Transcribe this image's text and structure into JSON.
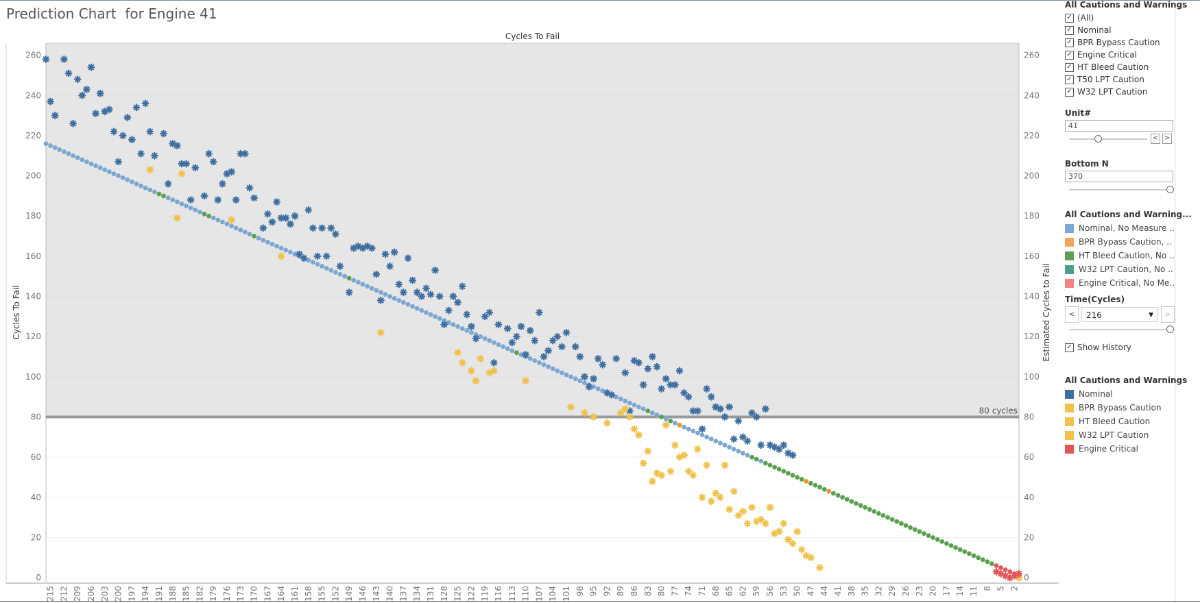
{
  "title": "Prediction Chart  for Engine 41",
  "chart_data": {
    "type": "scatter",
    "title": "Cycles To Fail",
    "ylabel_left": "Cycles To Fail",
    "ylabel_right": "Estimated Cycles to Fail",
    "x_ticks": [
      215,
      212,
      209,
      206,
      203,
      200,
      197,
      194,
      191,
      188,
      185,
      182,
      179,
      176,
      173,
      170,
      167,
      164,
      161,
      158,
      155,
      152,
      149,
      146,
      143,
      140,
      137,
      134,
      131,
      128,
      125,
      122,
      119,
      116,
      113,
      110,
      107,
      104,
      101,
      98,
      95,
      92,
      89,
      86,
      83,
      80,
      77,
      74,
      71,
      68,
      65,
      62,
      59,
      56,
      53,
      50,
      47,
      44,
      41,
      38,
      35,
      32,
      29,
      26,
      23,
      20,
      17,
      14,
      11,
      8,
      5,
      2
    ],
    "y_ticks": [
      0,
      20,
      40,
      60,
      80,
      100,
      120,
      140,
      160,
      180,
      200,
      220,
      240,
      260
    ],
    "xlim": [
      216,
      1
    ],
    "ylim": [
      -2,
      266
    ],
    "threshold": {
      "value": 80,
      "label": "80 cycles"
    },
    "series": [
      {
        "name": "Nominal, No Measure ..",
        "color": "#7ba7d1",
        "shape": "circle",
        "x_range": [
          216,
          1
        ],
        "y_at_start": 216,
        "y_at_end": 1
      },
      {
        "name": "Nominal",
        "color": "#3f6f9f",
        "shape": "asterisk",
        "points": [
          [
            216,
            258
          ],
          [
            215,
            237
          ],
          [
            214,
            230
          ],
          [
            212,
            258
          ],
          [
            211,
            251
          ],
          [
            210,
            226
          ],
          [
            209,
            248
          ],
          [
            208,
            240
          ],
          [
            207,
            243
          ],
          [
            206,
            254
          ],
          [
            205,
            231
          ],
          [
            204,
            241
          ],
          [
            203,
            232
          ],
          [
            202,
            233
          ],
          [
            201,
            222
          ],
          [
            200,
            207
          ],
          [
            199,
            220
          ],
          [
            198,
            229
          ],
          [
            197,
            218
          ],
          [
            196,
            234
          ],
          [
            195,
            211
          ],
          [
            194,
            236
          ],
          [
            193,
            222
          ],
          [
            192,
            210
          ],
          [
            190,
            221
          ],
          [
            189,
            196
          ],
          [
            188,
            216
          ],
          [
            187,
            215
          ],
          [
            186,
            206
          ],
          [
            185,
            206
          ],
          [
            184,
            188
          ],
          [
            183,
            204
          ],
          [
            181,
            190
          ],
          [
            180,
            211
          ],
          [
            179,
            207
          ],
          [
            178,
            188
          ],
          [
            177,
            196
          ],
          [
            176,
            201
          ],
          [
            175,
            202
          ],
          [
            174,
            188
          ],
          [
            173,
            211
          ],
          [
            172,
            211
          ],
          [
            171,
            194
          ],
          [
            170,
            189
          ],
          [
            168,
            174
          ],
          [
            167,
            181
          ],
          [
            166,
            177
          ],
          [
            165,
            187
          ],
          [
            164,
            179
          ],
          [
            163,
            179
          ],
          [
            162,
            176
          ],
          [
            161,
            180
          ],
          [
            160,
            161
          ],
          [
            159,
            159
          ],
          [
            158,
            183
          ],
          [
            157,
            174
          ],
          [
            156,
            160
          ],
          [
            155,
            174
          ],
          [
            154,
            160
          ],
          [
            153,
            174
          ],
          [
            152,
            171
          ],
          [
            151,
            155
          ],
          [
            149,
            142
          ],
          [
            148,
            164
          ],
          [
            147,
            165
          ],
          [
            146,
            164
          ],
          [
            145,
            165
          ],
          [
            144,
            164
          ],
          [
            143,
            151
          ],
          [
            142,
            138
          ],
          [
            141,
            161
          ],
          [
            140,
            155
          ],
          [
            139,
            162
          ],
          [
            138,
            146
          ],
          [
            137,
            142
          ],
          [
            136,
            159
          ],
          [
            135,
            148
          ],
          [
            134,
            142
          ],
          [
            133,
            140
          ],
          [
            132,
            144
          ],
          [
            131,
            141
          ],
          [
            130,
            153
          ],
          [
            129,
            140
          ],
          [
            128,
            126
          ],
          [
            127,
            133
          ],
          [
            126,
            140
          ],
          [
            125,
            137
          ],
          [
            124,
            145
          ],
          [
            123,
            131
          ],
          [
            122,
            125
          ],
          [
            121,
            119
          ],
          [
            119,
            130
          ],
          [
            118,
            132
          ],
          [
            117,
            107
          ],
          [
            116,
            126
          ],
          [
            114,
            124
          ],
          [
            113,
            117
          ],
          [
            112,
            120
          ],
          [
            111,
            125
          ],
          [
            110,
            111
          ],
          [
            109,
            123
          ],
          [
            108,
            118
          ],
          [
            107,
            132
          ],
          [
            106,
            110
          ],
          [
            105,
            113
          ],
          [
            104,
            118
          ],
          [
            103,
            120
          ],
          [
            102,
            115
          ],
          [
            101,
            122
          ],
          [
            99,
            115
          ],
          [
            98,
            110
          ],
          [
            97,
            100
          ],
          [
            96,
            95
          ],
          [
            95,
            99
          ],
          [
            94,
            109
          ],
          [
            93,
            106
          ],
          [
            92,
            92
          ],
          [
            91,
            91
          ],
          [
            90,
            109
          ],
          [
            88,
            102
          ],
          [
            87,
            83
          ],
          [
            86,
            108
          ],
          [
            85,
            107
          ],
          [
            84,
            96
          ],
          [
            83,
            104
          ],
          [
            82,
            110
          ],
          [
            81,
            105
          ],
          [
            80,
            94
          ],
          [
            79,
            99
          ],
          [
            78,
            96
          ],
          [
            77,
            96
          ],
          [
            76,
            103
          ],
          [
            75,
            92
          ],
          [
            74,
            90
          ],
          [
            73,
            83
          ],
          [
            72,
            83
          ],
          [
            71,
            74
          ],
          [
            70,
            94
          ],
          [
            69,
            90
          ],
          [
            68,
            85
          ],
          [
            67,
            84
          ],
          [
            66,
            80
          ],
          [
            65,
            85
          ],
          [
            64,
            69
          ],
          [
            63,
            78
          ],
          [
            62,
            70
          ],
          [
            61,
            68
          ],
          [
            60,
            82
          ],
          [
            59,
            80
          ],
          [
            58,
            66
          ],
          [
            57,
            84
          ],
          [
            56,
            66
          ],
          [
            55,
            65
          ],
          [
            54,
            64
          ],
          [
            53,
            66
          ],
          [
            52,
            62
          ],
          [
            51,
            61
          ]
        ]
      },
      {
        "name": "BPR Bypass Caution",
        "color": "#f0c14b",
        "shape": "asterisk",
        "points": [
          [
            193,
            203
          ],
          [
            187,
            179
          ],
          [
            186,
            201
          ],
          [
            175,
            178
          ],
          [
            164,
            160
          ],
          [
            142,
            122
          ],
          [
            125,
            112
          ],
          [
            124,
            107
          ],
          [
            122,
            103
          ],
          [
            121,
            98
          ],
          [
            120,
            109
          ],
          [
            118,
            102
          ],
          [
            117,
            103
          ],
          [
            110,
            98
          ],
          [
            100,
            85
          ],
          [
            97,
            82
          ],
          [
            95,
            80
          ],
          [
            92,
            77
          ],
          [
            89,
            82
          ],
          [
            88,
            84
          ],
          [
            87,
            80
          ],
          [
            86,
            74
          ],
          [
            85,
            71
          ],
          [
            84,
            57
          ],
          [
            83,
            63
          ],
          [
            82,
            48
          ],
          [
            81,
            52
          ],
          [
            80,
            51
          ],
          [
            79,
            76
          ],
          [
            78,
            53
          ],
          [
            77,
            66
          ],
          [
            76,
            60
          ],
          [
            75,
            61
          ],
          [
            74,
            53
          ],
          [
            73,
            51
          ],
          [
            72,
            64
          ],
          [
            71,
            40
          ],
          [
            70,
            56
          ],
          [
            69,
            38
          ],
          [
            68,
            42
          ],
          [
            67,
            40
          ],
          [
            66,
            56
          ],
          [
            65,
            34
          ],
          [
            64,
            43
          ],
          [
            63,
            31
          ],
          [
            62,
            33
          ],
          [
            61,
            27
          ],
          [
            60,
            35
          ],
          [
            59,
            28
          ],
          [
            58,
            29
          ],
          [
            57,
            27
          ],
          [
            56,
            35
          ],
          [
            55,
            22
          ],
          [
            54,
            23
          ],
          [
            53,
            27
          ],
          [
            52,
            19
          ],
          [
            51,
            17
          ],
          [
            50,
            23
          ],
          [
            49,
            14
          ],
          [
            48,
            11
          ],
          [
            47,
            10
          ],
          [
            45,
            5
          ],
          [
            1,
            0
          ]
        ]
      },
      {
        "name": "Engine Critical",
        "color": "#e15759",
        "shape": "asterisk",
        "points": [
          [
            6,
            3
          ],
          [
            5,
            2
          ],
          [
            4,
            1
          ],
          [
            3,
            0
          ],
          [
            2,
            1
          ],
          [
            1,
            2
          ]
        ]
      }
    ],
    "track_markers": [
      {
        "name": "HT Bleed Caution, No ..",
        "color": "#59a14f",
        "x": [
          191,
          190,
          181,
          180,
          170,
          149,
          112,
          83,
          80,
          78,
          60,
          59,
          57,
          56,
          55,
          54,
          53,
          52,
          51,
          50,
          49,
          48,
          47,
          46,
          45,
          44,
          43,
          42,
          41,
          40,
          39,
          38,
          37,
          36,
          35,
          34,
          33,
          32,
          31,
          30,
          29,
          28,
          27,
          26,
          25,
          24,
          23,
          22,
          21,
          20,
          19,
          18,
          17,
          16,
          15,
          14,
          13,
          12,
          11,
          10,
          9,
          8,
          7
        ]
      },
      {
        "name": "BPR Bypass Caution, ..",
        "color": "#f28e2b",
        "x": [
          76,
          48,
          43
        ]
      },
      {
        "name": "Engine Critical, No Me..",
        "color": "#e15759",
        "x": [
          6,
          5,
          4,
          3,
          2,
          1
        ]
      }
    ]
  },
  "panel": {
    "filter_title": "All Cautions and Warnings",
    "filter_items": [
      "(All)",
      "Nominal",
      "BPR Bypass Caution",
      "Engine Critical",
      "HT Bleed Caution",
      "T50 LPT Caution",
      "W32 LPT Caution"
    ],
    "unit_label": "Unit#",
    "unit_value": "41",
    "bottom_label": "Bottom N",
    "bottom_value": "370",
    "legend1_title": "All Cautions and Warning...",
    "legend1_items": [
      {
        "label": "Nominal, No Measure ..",
        "color": "#7ba7d1"
      },
      {
        "label": "BPR Bypass Caution, ..",
        "color": "#f4a55a"
      },
      {
        "label": "HT Bleed Caution, No ..",
        "color": "#59a14f"
      },
      {
        "label": "W32 LPT Caution, No ..",
        "color": "#4e9f8a"
      },
      {
        "label": "Engine Critical, No Me..",
        "color": "#f28483"
      }
    ],
    "time_label": "Time(Cycles)",
    "time_value": "216",
    "show_history_label": "Show History",
    "legend2_title": "All Cautions and Warnings",
    "legend2_items": [
      {
        "label": "Nominal",
        "color": "#3f6f9f"
      },
      {
        "label": "BPR Bypass Caution",
        "color": "#f0c14b"
      },
      {
        "label": "HT Bleed Caution",
        "color": "#f0c14b"
      },
      {
        "label": "W32 LPT Caution",
        "color": "#f0c14b"
      },
      {
        "label": "Engine Critical",
        "color": "#e15759"
      }
    ]
  }
}
